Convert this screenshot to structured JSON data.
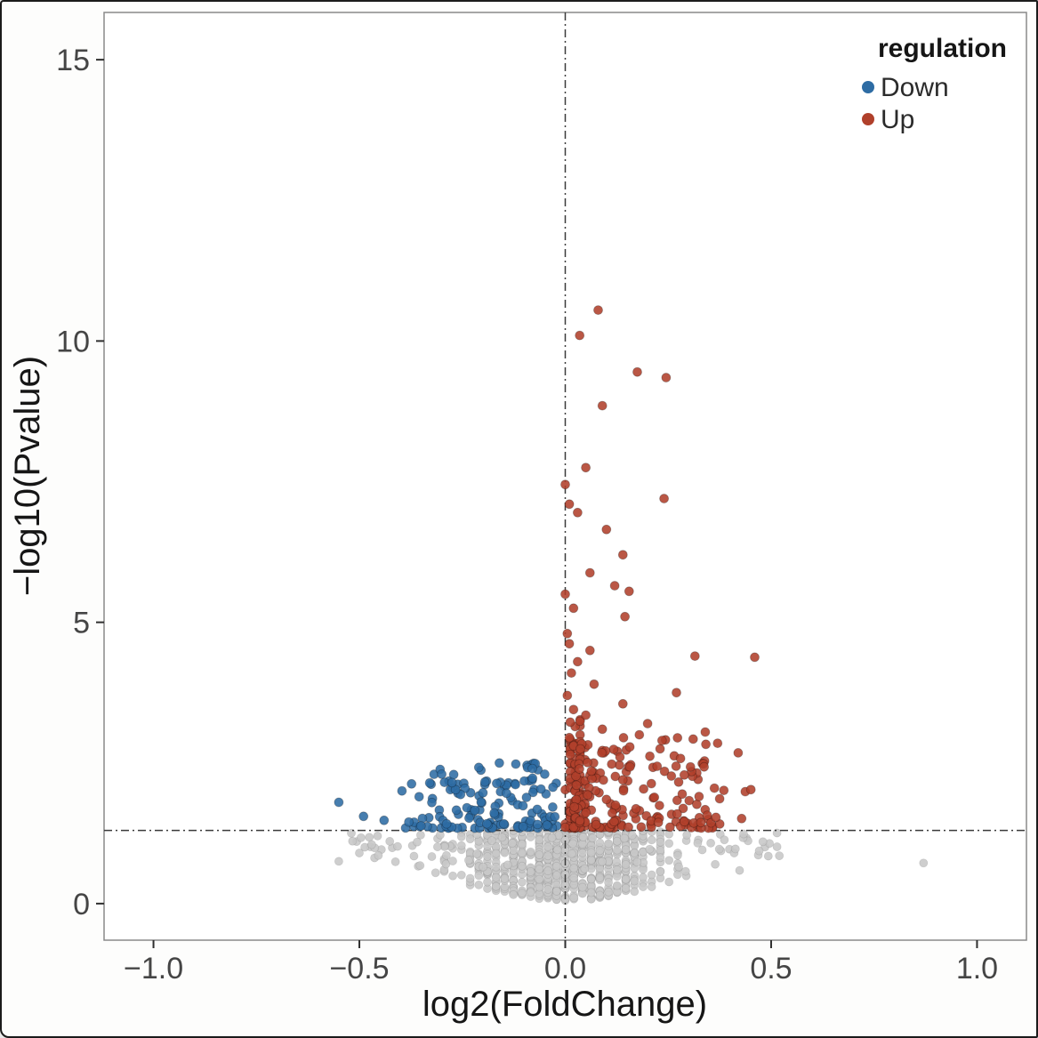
{
  "figure": {
    "background": "#fdfdfc",
    "frame_color": "#1b1b1b",
    "panel_background": "#ffffff",
    "panel_border_color": "#8a8a8a"
  },
  "chart_data": {
    "type": "scatter",
    "title": "",
    "xlabel": "log2(FoldChange)",
    "ylabel": "−log10(Pvalue)",
    "xlim": [
      -1.12,
      1.12
    ],
    "ylim": [
      -0.65,
      15.84
    ],
    "xticks": [
      -1.0,
      -0.5,
      0.0,
      0.5,
      1.0
    ],
    "xtick_labels": [
      "−1.0",
      "−0.5",
      "0.0",
      "0.5",
      "1.0"
    ],
    "yticks": [
      0,
      5,
      10,
      15
    ],
    "ytick_labels": [
      "0",
      "5",
      "10",
      "15"
    ],
    "grid": false,
    "legend": {
      "title": "regulation",
      "position": "top-right-inside",
      "entries": [
        {
          "key": "down",
          "label": "Down",
          "color": "#2e6ca4"
        },
        {
          "key": "up",
          "label": "Up",
          "color": "#b0402b"
        }
      ]
    },
    "colors": {
      "up": "#b0402b",
      "down": "#2e6ca4",
      "ns": "#c7c7c7"
    },
    "reference_lines": {
      "vertical_x": 0.0,
      "horizontal_y": 1.301,
      "style": "dash-dot",
      "color": "#3a3a3a"
    },
    "point_radius_px": 5,
    "up_points": [
      [
        0.08,
        10.55
      ],
      [
        0.035,
        10.1
      ],
      [
        0.175,
        9.45
      ],
      [
        0.245,
        9.35
      ],
      [
        0.09,
        8.85
      ],
      [
        0.05,
        7.75
      ],
      [
        0.0,
        7.45
      ],
      [
        0.24,
        7.2
      ],
      [
        0.01,
        7.1
      ],
      [
        0.03,
        6.95
      ],
      [
        0.1,
        6.65
      ],
      [
        0.14,
        6.2
      ],
      [
        0.06,
        5.88
      ],
      [
        0.12,
        5.65
      ],
      [
        0.155,
        5.55
      ],
      [
        0.0,
        5.5
      ],
      [
        0.02,
        5.25
      ],
      [
        0.145,
        5.1
      ],
      [
        0.005,
        4.8
      ],
      [
        0.01,
        4.62
      ],
      [
        0.06,
        4.5
      ],
      [
        0.315,
        4.4
      ],
      [
        0.46,
        4.38
      ],
      [
        0.03,
        4.3
      ],
      [
        0.015,
        4.1
      ],
      [
        0.07,
        3.9
      ],
      [
        0.27,
        3.75
      ],
      [
        0.005,
        3.7
      ],
      [
        0.14,
        3.55
      ],
      [
        0.02,
        3.45
      ],
      [
        0.05,
        3.35
      ],
      [
        0.2,
        3.2
      ],
      [
        0.09,
        3.1
      ],
      [
        0.34,
        3.05
      ],
      [
        0.18,
        3.0
      ],
      [
        0.01,
        2.95
      ],
      [
        0.235,
        2.9
      ],
      [
        0.37,
        2.85
      ],
      [
        0.42,
        2.68
      ],
      [
        0.28,
        2.58
      ]
    ],
    "down_points": [
      [
        -0.55,
        1.8
      ],
      [
        -0.49,
        1.55
      ],
      [
        -0.44,
        1.48
      ],
      [
        -0.38,
        1.45
      ],
      [
        -0.355,
        1.9
      ],
      [
        -0.3,
        2.3
      ],
      [
        -0.275,
        2.15
      ],
      [
        -0.21,
        2.42
      ],
      [
        -0.16,
        2.5
      ],
      [
        -0.12,
        2.48
      ],
      [
        -0.08,
        2.4
      ],
      [
        -0.05,
        2.3
      ]
    ],
    "ns_points": [
      [
        0.87,
        0.72
      ],
      [
        -0.55,
        0.75
      ],
      [
        -0.5,
        0.9
      ],
      [
        -0.47,
        1.05
      ],
      [
        0.52,
        0.85
      ],
      [
        0.48,
        1.1
      ]
    ],
    "clusters": [
      {
        "group": "up",
        "kind": "band",
        "n": 85,
        "seed": 101,
        "xmin": 0.004,
        "xmax": 0.05,
        "quantx": 0.012,
        "ymin": 1.34,
        "ymax": 3.3,
        "ybias": 2.0
      },
      {
        "group": "up",
        "kind": "band",
        "n": 160,
        "seed": 102,
        "xmin": 0.02,
        "xmax": 0.36,
        "xbias": 1.5,
        "ymin": 1.34,
        "ymax": 2.95,
        "ybias": 1.8
      },
      {
        "group": "up",
        "kind": "band",
        "n": 16,
        "seed": 103,
        "xmin": 0.28,
        "xmax": 0.48,
        "xbias": 1.0,
        "ymin": 1.4,
        "ymax": 2.5,
        "ybias": 1.2
      },
      {
        "group": "down",
        "kind": "band",
        "n": 120,
        "seed": 104,
        "xmin": -0.42,
        "xmax": -0.02,
        "xbias": 0.65,
        "ymin": 1.34,
        "ymax": 2.2,
        "ybias": 1.8
      },
      {
        "group": "down",
        "kind": "band",
        "n": 15,
        "seed": 105,
        "xmin": -0.33,
        "xmax": -0.05,
        "xbias": 1.0,
        "ymin": 2.0,
        "ymax": 2.5,
        "ybias": 1.0
      },
      {
        "group": "ns",
        "kind": "dome",
        "n": 680,
        "seed": 106,
        "xhalf": 0.43,
        "quantx": 0.021,
        "ymin": 0.05,
        "ymax": 1.3,
        "domeK": 0.8,
        "domeP": 1.7
      },
      {
        "group": "ns",
        "kind": "band",
        "n": 80,
        "seed": 107,
        "xmin": -0.52,
        "xmax": 0.52,
        "xbias": 1.0,
        "ymin": 0.5,
        "ymax": 1.28,
        "ybias": 0.75
      }
    ]
  }
}
